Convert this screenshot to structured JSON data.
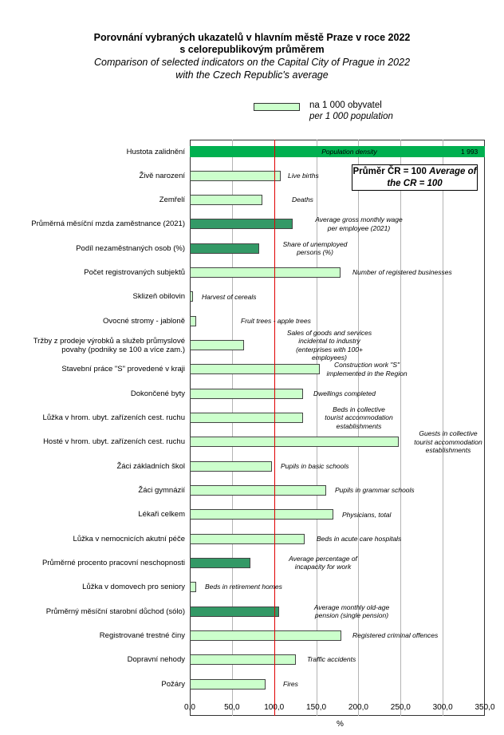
{
  "chart_data": {
    "type": "bar",
    "orientation": "horizontal",
    "title": "Porovnání vybraných ukazatelů v hlavním městě Praze v roce 2022",
    "title_line2": "s celorepublikovým průměrem",
    "subtitle": "Comparison  of selected indicators on the Capital City of Prague  in 2022",
    "subtitle_line2": "with the Czech Republic's average",
    "legend": {
      "cz": "na 1 000 obyvatel",
      "en": "per 1 000 population",
      "placement": "top"
    },
    "reference": {
      "cz": "Průměr  ČR = 100",
      "en": "Average of the CR = 100",
      "value": 100
    },
    "xlabel": "%",
    "xlim": [
      0,
      350
    ],
    "xticks": [
      "0,0",
      "50,0",
      "100,0",
      "150,0",
      "200,0",
      "250,0",
      "300,0",
      "350,0"
    ],
    "grid": true,
    "colors": {
      "light": "#ccffcc",
      "dark": "#339966",
      "density": "#00b050",
      "reference": "#e00000"
    },
    "density_value_label": "1 993",
    "categories": [
      {
        "cz": "Hustota zalidnění",
        "en": [
          "Population density"
        ],
        "value": 1993,
        "style": "density"
      },
      {
        "cz": "Živě narození",
        "en": [
          "Live births"
        ],
        "value": 107.5,
        "style": "light"
      },
      {
        "cz": "Zemřelí",
        "en": [
          "Deaths"
        ],
        "value": 85.7,
        "style": "light"
      },
      {
        "cz": "Průměrná měsíční mzda zaměstnance (2021)",
        "en": [
          "Average gross monthly  wage",
          "per employee  (2021)"
        ],
        "value": 122.4,
        "style": "dark"
      },
      {
        "cz": "Podíl nezaměstnaných osob (%)",
        "en": [
          "Share  of unemployed",
          "persons (%)"
        ],
        "value": 81.9,
        "style": "dark"
      },
      {
        "cz": "Počet registrovaných subjektů",
        "en": [
          "Number  of registered businesses"
        ],
        "value": 178.7,
        "style": "light"
      },
      {
        "cz": "Sklizeň obilovin",
        "en": [
          "Harvest of cereals"
        ],
        "value": 3.8,
        "style": "light"
      },
      {
        "cz": "Ovocné stromy - jabloně",
        "en": [
          "Fruit trees - apple  trees"
        ],
        "value": 7.7,
        "style": "light"
      },
      {
        "cz": "Tržby z prodeje výrobků a služeb průmyslové|povahy (podniky se 100 a více zam.)",
        "en": [
          "Sales of goods and services",
          "incidental to industry",
          "(enterprises with 100+",
          "employees)"
        ],
        "value": 63.9,
        "style": "light"
      },
      {
        "cz": "Stavební práce \"S\" provedené v kraji",
        "en": [
          "Construction work \"S\"",
          "implemented  in the Region"
        ],
        "value": 154.6,
        "style": "light"
      },
      {
        "cz": "Dokončené byty",
        "en": [
          "Dwellings  completed"
        ],
        "value": 133.9,
        "style": "light"
      },
      {
        "cz": "Lůžka v hrom. ubyt. zařízeních cest. ruchu",
        "en": [
          "Beds in collective",
          "tourist accommodation",
          "establishments"
        ],
        "value": 133.9,
        "style": "light"
      },
      {
        "cz": "Hosté v hrom. ubyt. zařízeních cest. ruchu",
        "en": [
          "Guests in collective",
          "tourist accommodation",
          "establishments"
        ],
        "value": 247.9,
        "style": "light"
      },
      {
        "cz": "Žáci základních škol",
        "en": [
          "Pupils in basic schools"
        ],
        "value": 97.2,
        "style": "light"
      },
      {
        "cz": "Žáci gymnázií",
        "en": [
          "Pupils in grammar   schools"
        ],
        "value": 161.4,
        "style": "light"
      },
      {
        "cz": "Lékaři celkem",
        "en": [
          "Physicians, total"
        ],
        "value": 170.2,
        "style": "light"
      },
      {
        "cz": "Lůžka v nemocnicích akutní péče",
        "en": [
          "Beds in acute care hospitals"
        ],
        "value": 136.6,
        "style": "light"
      },
      {
        "cz": "Průměrné procento pracovní neschopnosti",
        "en": [
          "Average percentage  of",
          "incapacity for work"
        ],
        "value": 71.5,
        "style": "dark"
      },
      {
        "cz": "Lůžka v domovech pro seniory",
        "en": [
          "Beds in retirement  homes"
        ],
        "value": 7.7,
        "style": "light"
      },
      {
        "cz": "Průměrný měsíční starobní důchod (sólo)",
        "en": [
          "Average monthly  old-age",
          "pension (single pension)"
        ],
        "value": 106.3,
        "style": "dark"
      },
      {
        "cz": "Registrované trestné činy",
        "en": [
          "Registered criminal offences"
        ],
        "value": 179.4,
        "style": "light"
      },
      {
        "cz": "Dopravní nehody",
        "en": [
          "Traffic accidents"
        ],
        "value": 126.2,
        "style": "light"
      },
      {
        "cz": "Požáry",
        "en": [
          "Fires"
        ],
        "value": 90.3,
        "style": "light"
      }
    ]
  }
}
